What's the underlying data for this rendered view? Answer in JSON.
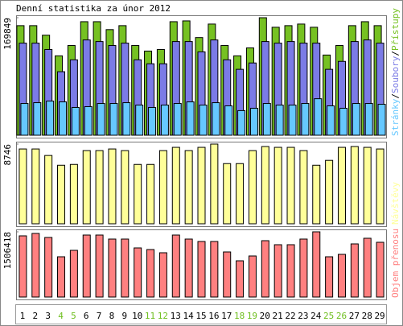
{
  "title": "Denní statistika za únor 2012",
  "legend_separator": "/",
  "weekend_color": "#6fbf1f",
  "weekend_indices": [
    3,
    4,
    10,
    11,
    17,
    18,
    24,
    25
  ],
  "chart_data": [
    {
      "type": "bar",
      "ylim": [
        0,
        169849
      ],
      "yticks": [
        169849
      ],
      "series": [
        {
          "name": "Přístupy",
          "color": "#76c122",
          "values": [
            158369,
            158369,
            144598,
            114760,
            129679,
            164107,
            164107,
            152631,
            158369,
            129679,
            121646,
            123941,
            164107,
            165254,
            141155,
            160664,
            129679,
            114760,
            126236,
            169849,
            156074,
            158369,
            160664,
            156074,
            115908,
            129679,
            158369,
            164107,
            158369
          ]
        },
        {
          "name": "Soubory",
          "color": "#7b7be6",
          "values": [
            133122,
            133122,
            123941,
            91808,
            109022,
            137712,
            135417,
            129679,
            133122,
            109022,
            103284,
            103284,
            135417,
            135417,
            120498,
            137712,
            109022,
            95251,
            104432,
            135417,
            133122,
            135417,
            133122,
            133122,
            95251,
            106727,
            135417,
            137712,
            133122
          ]
        },
        {
          "name": "Stránky",
          "color": "#66c8ff",
          "values": [
            45904,
            47052,
            49347,
            48199,
            40166,
            41314,
            45904,
            45904,
            47052,
            43609,
            40166,
            43609,
            45904,
            48199,
            43609,
            47052,
            42461,
            35576,
            39019,
            45904,
            43609,
            43609,
            45904,
            52770,
            42461,
            39019,
            45904,
            45904,
            44756
          ]
        }
      ]
    },
    {
      "type": "bar",
      "ylim": [
        0,
        8746
      ],
      "yticks": [
        8746
      ],
      "series": [
        {
          "name": "Návštěvy",
          "color": "#ffff99",
          "values": [
            8210,
            8210,
            7496,
            6425,
            6515,
            8032,
            8032,
            8210,
            8032,
            6515,
            6515,
            8032,
            8389,
            8032,
            8389,
            8746,
            6604,
            6604,
            8032,
            8478,
            8389,
            8389,
            8032,
            6425,
            6961,
            8389,
            8478,
            8389,
            8210
          ]
        }
      ]
    },
    {
      "type": "bar",
      "ylim": [
        0,
        1506418
      ],
      "yticks": [
        1506418
      ],
      "categories": [
        "1",
        "2",
        "3",
        "4",
        "5",
        "6",
        "7",
        "8",
        "9",
        "10",
        "11",
        "12",
        "13",
        "14",
        "15",
        "16",
        "17",
        "18",
        "19",
        "20",
        "21",
        "22",
        "23",
        "24",
        "25",
        "26",
        "27",
        "28",
        "29"
      ],
      "series": [
        {
          "name": "Objem přenosu",
          "color": "#ff8080",
          "values": [
            1413448,
            1469242,
            1376252,
            929900,
            1078684,
            1432046,
            1432046,
            1339056,
            1339056,
            1134478,
            1097282,
            1022890,
            1432046,
            1339056,
            1283262,
            1283262,
            1041488,
            836910,
            948498,
            1301860,
            1208870,
            1208870,
            1339056,
            1506418,
            929900,
            985694,
            1227468,
            1357654,
            1264664
          ]
        }
      ]
    }
  ]
}
